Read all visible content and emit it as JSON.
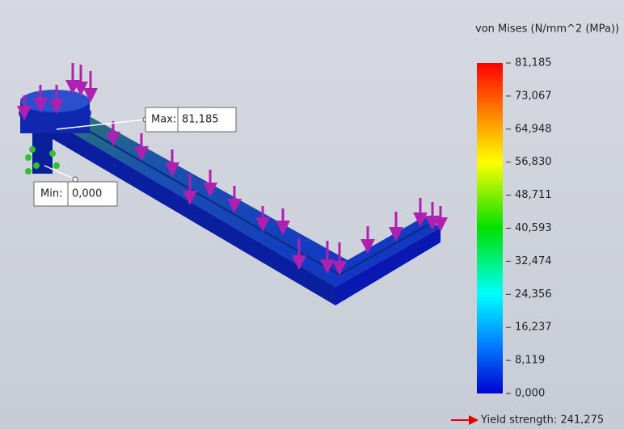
{
  "legend": {
    "title": "von Mises (N/mm^2 (MPa))",
    "labels": [
      "81,185",
      "73,067",
      "64,948",
      "56,830",
      "48,711",
      "40,593",
      "32,474",
      "24,356",
      "16,237",
      "8,119",
      "0,000"
    ]
  },
  "max_probe": {
    "label": "Max:",
    "value": "81,185"
  },
  "min_probe": {
    "label": "Min:",
    "value": "0,000"
  },
  "yield": "Yield strength: 241,275"
}
